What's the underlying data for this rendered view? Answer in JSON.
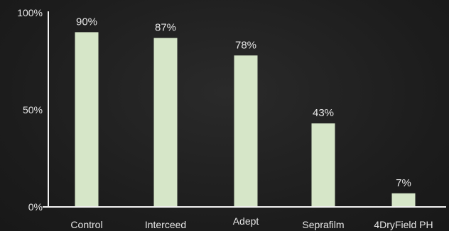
{
  "chart_data": {
    "type": "bar",
    "title": "",
    "xlabel": "",
    "ylabel": "",
    "categories": [
      "Control",
      "Interceed",
      "Adept",
      "Seprafilm",
      "4DryField PH"
    ],
    "values": [
      90,
      87,
      78,
      43,
      7
    ],
    "value_labels": [
      "90%",
      "87%",
      "78%",
      "43%",
      "7%"
    ],
    "ylim": [
      0,
      100
    ],
    "yticks": [
      {
        "value": 0,
        "label": "0%"
      },
      {
        "value": 50,
        "label": "50%"
      },
      {
        "value": 100,
        "label": "100%"
      }
    ],
    "grid": false,
    "legend": "none",
    "colors": {
      "bar": "#d6e6c8",
      "axis": "#f2f2f2",
      "text": "#e6e6e6",
      "background": "#1f1f1f"
    }
  }
}
